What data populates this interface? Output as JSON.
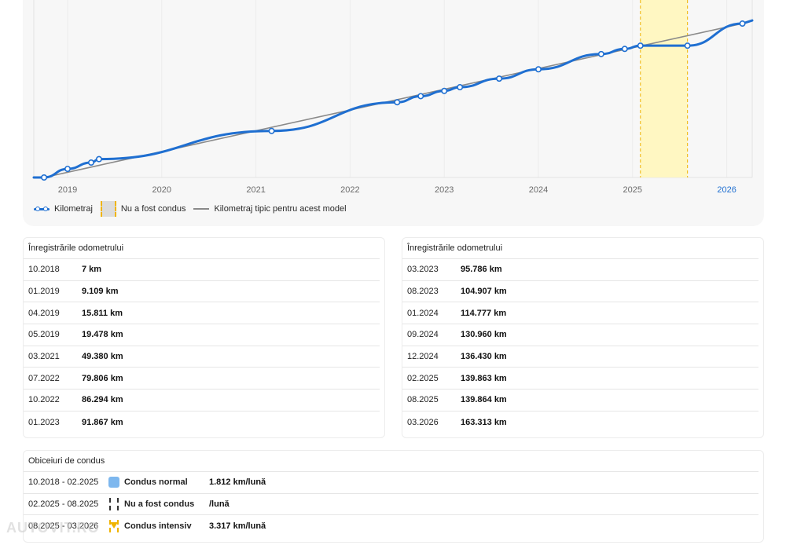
{
  "chart_data": {
    "type": "line",
    "x_ticks": [
      "2019",
      "2020",
      "2021",
      "2022",
      "2023",
      "2024",
      "2025",
      "2026"
    ],
    "current_tick": "2026",
    "legend_position": "bottom-left",
    "grid": "vertical",
    "series": [
      {
        "name": "Kilometraj",
        "color": "#1f6fd1",
        "points": [
          {
            "date": "10.2018",
            "km": 7
          },
          {
            "date": "01.2019",
            "km": 9109
          },
          {
            "date": "04.2019",
            "km": 15811
          },
          {
            "date": "05.2019",
            "km": 19478
          },
          {
            "date": "03.2021",
            "km": 49380
          },
          {
            "date": "07.2022",
            "km": 79806
          },
          {
            "date": "10.2022",
            "km": 86294
          },
          {
            "date": "01.2023",
            "km": 91867
          },
          {
            "date": "03.2023",
            "km": 95786
          },
          {
            "date": "08.2023",
            "km": 104907
          },
          {
            "date": "01.2024",
            "km": 114777
          },
          {
            "date": "09.2024",
            "km": 130960
          },
          {
            "date": "12.2024",
            "km": 136430
          },
          {
            "date": "02.2025",
            "km": 139863
          },
          {
            "date": "08.2025",
            "km": 139864
          },
          {
            "date": "03.2026",
            "km": 163313
          }
        ]
      },
      {
        "name": "Kilometraj tipic pentru acest model",
        "color": "#8a8a8a",
        "points": [
          {
            "date": "10.2018",
            "km": 0
          },
          {
            "date": "03.2026",
            "km": 163313
          }
        ]
      }
    ],
    "band": {
      "name": "Nu a fost condus",
      "from": "02.2025",
      "to": "08.2025",
      "color": "#fff7c2"
    }
  },
  "legend": {
    "items": [
      {
        "label": "Kilometraj"
      },
      {
        "label": "Nu a fost condus"
      },
      {
        "label": "Kilometraj tipic pentru acest model"
      }
    ]
  },
  "records_left": {
    "title": "Înregistrările odometrului",
    "rows": [
      {
        "date": "10.2018",
        "km": "7 km"
      },
      {
        "date": "01.2019",
        "km": "9.109 km"
      },
      {
        "date": "04.2019",
        "km": "15.811 km"
      },
      {
        "date": "05.2019",
        "km": "19.478 km"
      },
      {
        "date": "03.2021",
        "km": "49.380 km"
      },
      {
        "date": "07.2022",
        "km": "79.806 km"
      },
      {
        "date": "10.2022",
        "km": "86.294 km"
      },
      {
        "date": "01.2023",
        "km": "91.867 km"
      }
    ]
  },
  "records_right": {
    "title": "Înregistrările odometrului",
    "rows": [
      {
        "date": "03.2023",
        "km": "95.786 km"
      },
      {
        "date": "08.2023",
        "km": "104.907 km"
      },
      {
        "date": "01.2024",
        "km": "114.777 km"
      },
      {
        "date": "09.2024",
        "km": "130.960 km"
      },
      {
        "date": "12.2024",
        "km": "136.430 km"
      },
      {
        "date": "02.2025",
        "km": "139.863 km"
      },
      {
        "date": "08.2025",
        "km": "139.864 km"
      },
      {
        "date": "03.2026",
        "km": "163.313 km"
      }
    ]
  },
  "habits": {
    "title": "Obiceiuri de condus",
    "rows": [
      {
        "period": "10.2018 - 02.2025",
        "icon": "blue-square-icon",
        "type": "Condus normal",
        "rate": "1.812 km/lună"
      },
      {
        "period": "02.2025 - 08.2025",
        "icon": "dashed-bars-icon",
        "type": "Nu a fost condus",
        "rate": "/lună"
      },
      {
        "period": "08.2025 - 03.2026",
        "icon": "yellow-arrow-icon",
        "type": "Condus intensiv",
        "rate": "3.317 km/lună"
      }
    ]
  },
  "watermark": "AUTOVIT.RO"
}
